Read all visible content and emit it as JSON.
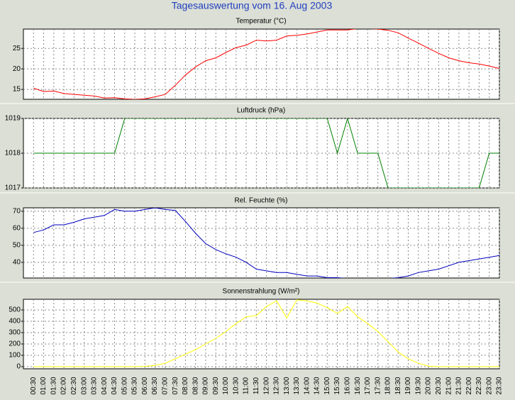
{
  "title": "Tagesauswertung vom 16. Aug 2003",
  "chart_data": [
    {
      "type": "line",
      "title": "Temperatur (°C)",
      "color": "#ff0000",
      "grid": true,
      "ylim": [
        12.6,
        29.7
      ],
      "yticks": [
        15,
        20,
        25
      ],
      "values": [
        15.3,
        14.5,
        14.6,
        14.0,
        13.8,
        13.6,
        13.4,
        12.9,
        13.0,
        12.7,
        12.6,
        12.7,
        13.2,
        13.8,
        16.0,
        18.5,
        20.5,
        22.0,
        22.7,
        24.0,
        25.2,
        25.8,
        27.0,
        26.8,
        27.0,
        28.0,
        28.2,
        28.5,
        29.0,
        29.5,
        29.5,
        29.5,
        29.8,
        29.8,
        29.7,
        29.4,
        28.8,
        27.5,
        26.3,
        25.0,
        23.8,
        22.7,
        22.0,
        21.5,
        21.2,
        20.7,
        20.1
      ]
    },
    {
      "type": "line",
      "title": "Luftdruck (hPa)",
      "color": "#008000",
      "grid": true,
      "ylim": [
        1017,
        1019
      ],
      "yticks": [
        1017,
        1018,
        1019
      ],
      "values": [
        1018,
        1018,
        1018,
        1018,
        1018,
        1018,
        1018,
        1018,
        1018,
        1019,
        1019,
        1019,
        1019,
        1019,
        1019,
        1019,
        1019,
        1019,
        1019,
        1019,
        1019,
        1019,
        1019,
        1019,
        1019,
        1019,
        1019,
        1019,
        1019,
        1019,
        1018,
        1019,
        1018,
        1018,
        1018,
        1017,
        1017,
        1017,
        1017,
        1017,
        1017,
        1017,
        1017,
        1017,
        1017,
        1018,
        1018
      ]
    },
    {
      "type": "line",
      "title": "Rel. Feuchte (%)",
      "color": "#0000c0",
      "grid": true,
      "ylim": [
        30.8,
        72
      ],
      "yticks": [
        40,
        50,
        60,
        70
      ],
      "values": [
        57.5,
        59,
        62,
        62,
        63.5,
        65.5,
        66.5,
        67.5,
        71,
        70,
        70,
        71,
        72,
        71,
        70.5,
        64,
        57,
        51,
        47.5,
        45,
        43,
        40,
        36,
        35,
        34,
        34,
        33,
        32,
        32,
        31,
        31,
        30.5,
        30.5,
        30.5,
        30.5,
        30.5,
        31,
        32,
        34,
        35,
        36,
        38,
        40,
        41,
        42,
        43,
        44
      ]
    },
    {
      "type": "line",
      "title": "Sonnenstrahlung (W/m²)",
      "color": "#ffff00",
      "grid": true,
      "ylim": [
        -19,
        594
      ],
      "yticks": [
        0,
        100,
        200,
        300,
        400,
        500
      ],
      "categories": [
        "00:30",
        "01:00",
        "01:30",
        "02:00",
        "02:30",
        "03:00",
        "03:30",
        "04:00",
        "04:30",
        "05:00",
        "05:30",
        "06:00",
        "06:30",
        "07:00",
        "07:30",
        "08:00",
        "08:30",
        "09:00",
        "09:30",
        "10:00",
        "10:30",
        "11:00",
        "11:30",
        "12:00",
        "12:30",
        "13:00",
        "13:30",
        "14:00",
        "14:30",
        "15:00",
        "15:30",
        "16:00",
        "16:30",
        "17:00",
        "17:30",
        "18:00",
        "18:30",
        "19:00",
        "19:30",
        "20:00",
        "20:30",
        "21:00",
        "21:30",
        "22:00",
        "22:30",
        "23:00",
        "23:30"
      ],
      "values": [
        0,
        0,
        0,
        0,
        0,
        0,
        0,
        0,
        0,
        0,
        0,
        3,
        10,
        30,
        70,
        110,
        150,
        200,
        250,
        310,
        380,
        440,
        450,
        530,
        580,
        430,
        590,
        580,
        560,
        520,
        470,
        530,
        440,
        380,
        310,
        220,
        130,
        70,
        30,
        5,
        0,
        0,
        0,
        0,
        0,
        0,
        0
      ]
    }
  ]
}
